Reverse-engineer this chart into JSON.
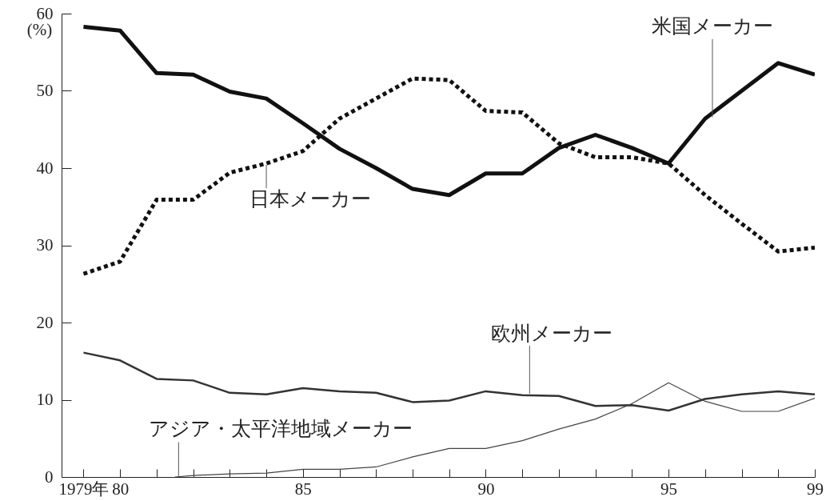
{
  "chart_data": {
    "type": "line",
    "ylabel": "(%)",
    "x": [
      1979,
      1980,
      1981,
      1982,
      1983,
      1984,
      1985,
      1986,
      1987,
      1988,
      1989,
      1990,
      1991,
      1992,
      1993,
      1994,
      1995,
      1996,
      1997,
      1998,
      1999
    ],
    "series": [
      {
        "name": "米国メーカー",
        "color": "#111111",
        "line_style": "solid",
        "values": [
          58.3,
          57.8,
          52.3,
          52.1,
          49.9,
          49.0,
          45.8,
          42.5,
          40.0,
          37.3,
          36.5,
          39.3,
          39.3,
          42.6,
          44.3,
          42.6,
          40.6,
          46.4,
          50.0,
          53.6,
          52.1
        ]
      },
      {
        "name": "日本メーカー",
        "color": "#111111",
        "line_style": "dotted",
        "values": [
          26.3,
          27.9,
          35.9,
          35.9,
          39.4,
          40.6,
          42.2,
          46.4,
          49.0,
          51.6,
          51.4,
          47.4,
          47.2,
          43.2,
          41.4,
          41.4,
          40.6,
          36.5,
          32.8,
          29.2,
          29.7
        ]
      },
      {
        "name": "欧州メーカー",
        "color": "#333333",
        "line_style": "solid",
        "values": [
          16.1,
          15.1,
          12.7,
          12.5,
          10.9,
          10.7,
          11.5,
          11.1,
          10.9,
          9.7,
          9.9,
          11.1,
          10.6,
          10.5,
          9.2,
          9.3,
          8.6,
          10.1,
          10.7,
          11.1,
          10.7
        ]
      },
      {
        "name": "アジア・太平洋地域メーカー",
        "color": "#444444",
        "line_style": "solid",
        "x": [
          1981.5,
          1982,
          1983,
          1984,
          1985,
          1986,
          1987,
          1988,
          1989,
          1990,
          1991,
          1992,
          1993,
          1994,
          1995,
          1996,
          1997,
          1998,
          1999
        ],
        "values": [
          0,
          0.2,
          0.4,
          0.5,
          1.0,
          1.0,
          1.3,
          2.6,
          3.7,
          3.7,
          4.7,
          6.2,
          7.5,
          9.5,
          12.2,
          9.8,
          8.5,
          8.5,
          10.2
        ]
      }
    ],
    "xlim": [
      1978.4,
      1999
    ],
    "xticks": [
      {
        "value": 1979,
        "label": "1979年"
      },
      {
        "value": 1980,
        "label": "80"
      },
      {
        "value": 1981,
        "label": null
      },
      {
        "value": 1982,
        "label": null
      },
      {
        "value": 1983,
        "label": null
      },
      {
        "value": 1984,
        "label": null
      },
      {
        "value": 1985,
        "label": "85"
      },
      {
        "value": 1986,
        "label": null
      },
      {
        "value": 1987,
        "label": null
      },
      {
        "value": 1988,
        "label": null
      },
      {
        "value": 1989,
        "label": null
      },
      {
        "value": 1990,
        "label": "90"
      },
      {
        "value": 1991,
        "label": null
      },
      {
        "value": 1992,
        "label": null
      },
      {
        "value": 1993,
        "label": null
      },
      {
        "value": 1994,
        "label": null
      },
      {
        "value": 1995,
        "label": "95"
      },
      {
        "value": 1996,
        "label": null
      },
      {
        "value": 1997,
        "label": null
      },
      {
        "value": 1998,
        "label": null
      },
      {
        "value": 1999,
        "label": "99"
      }
    ],
    "ylim": [
      0,
      60
    ],
    "yticks": [
      0,
      10,
      20,
      30,
      40,
      50,
      60
    ],
    "grid": false,
    "legend": false
  }
}
